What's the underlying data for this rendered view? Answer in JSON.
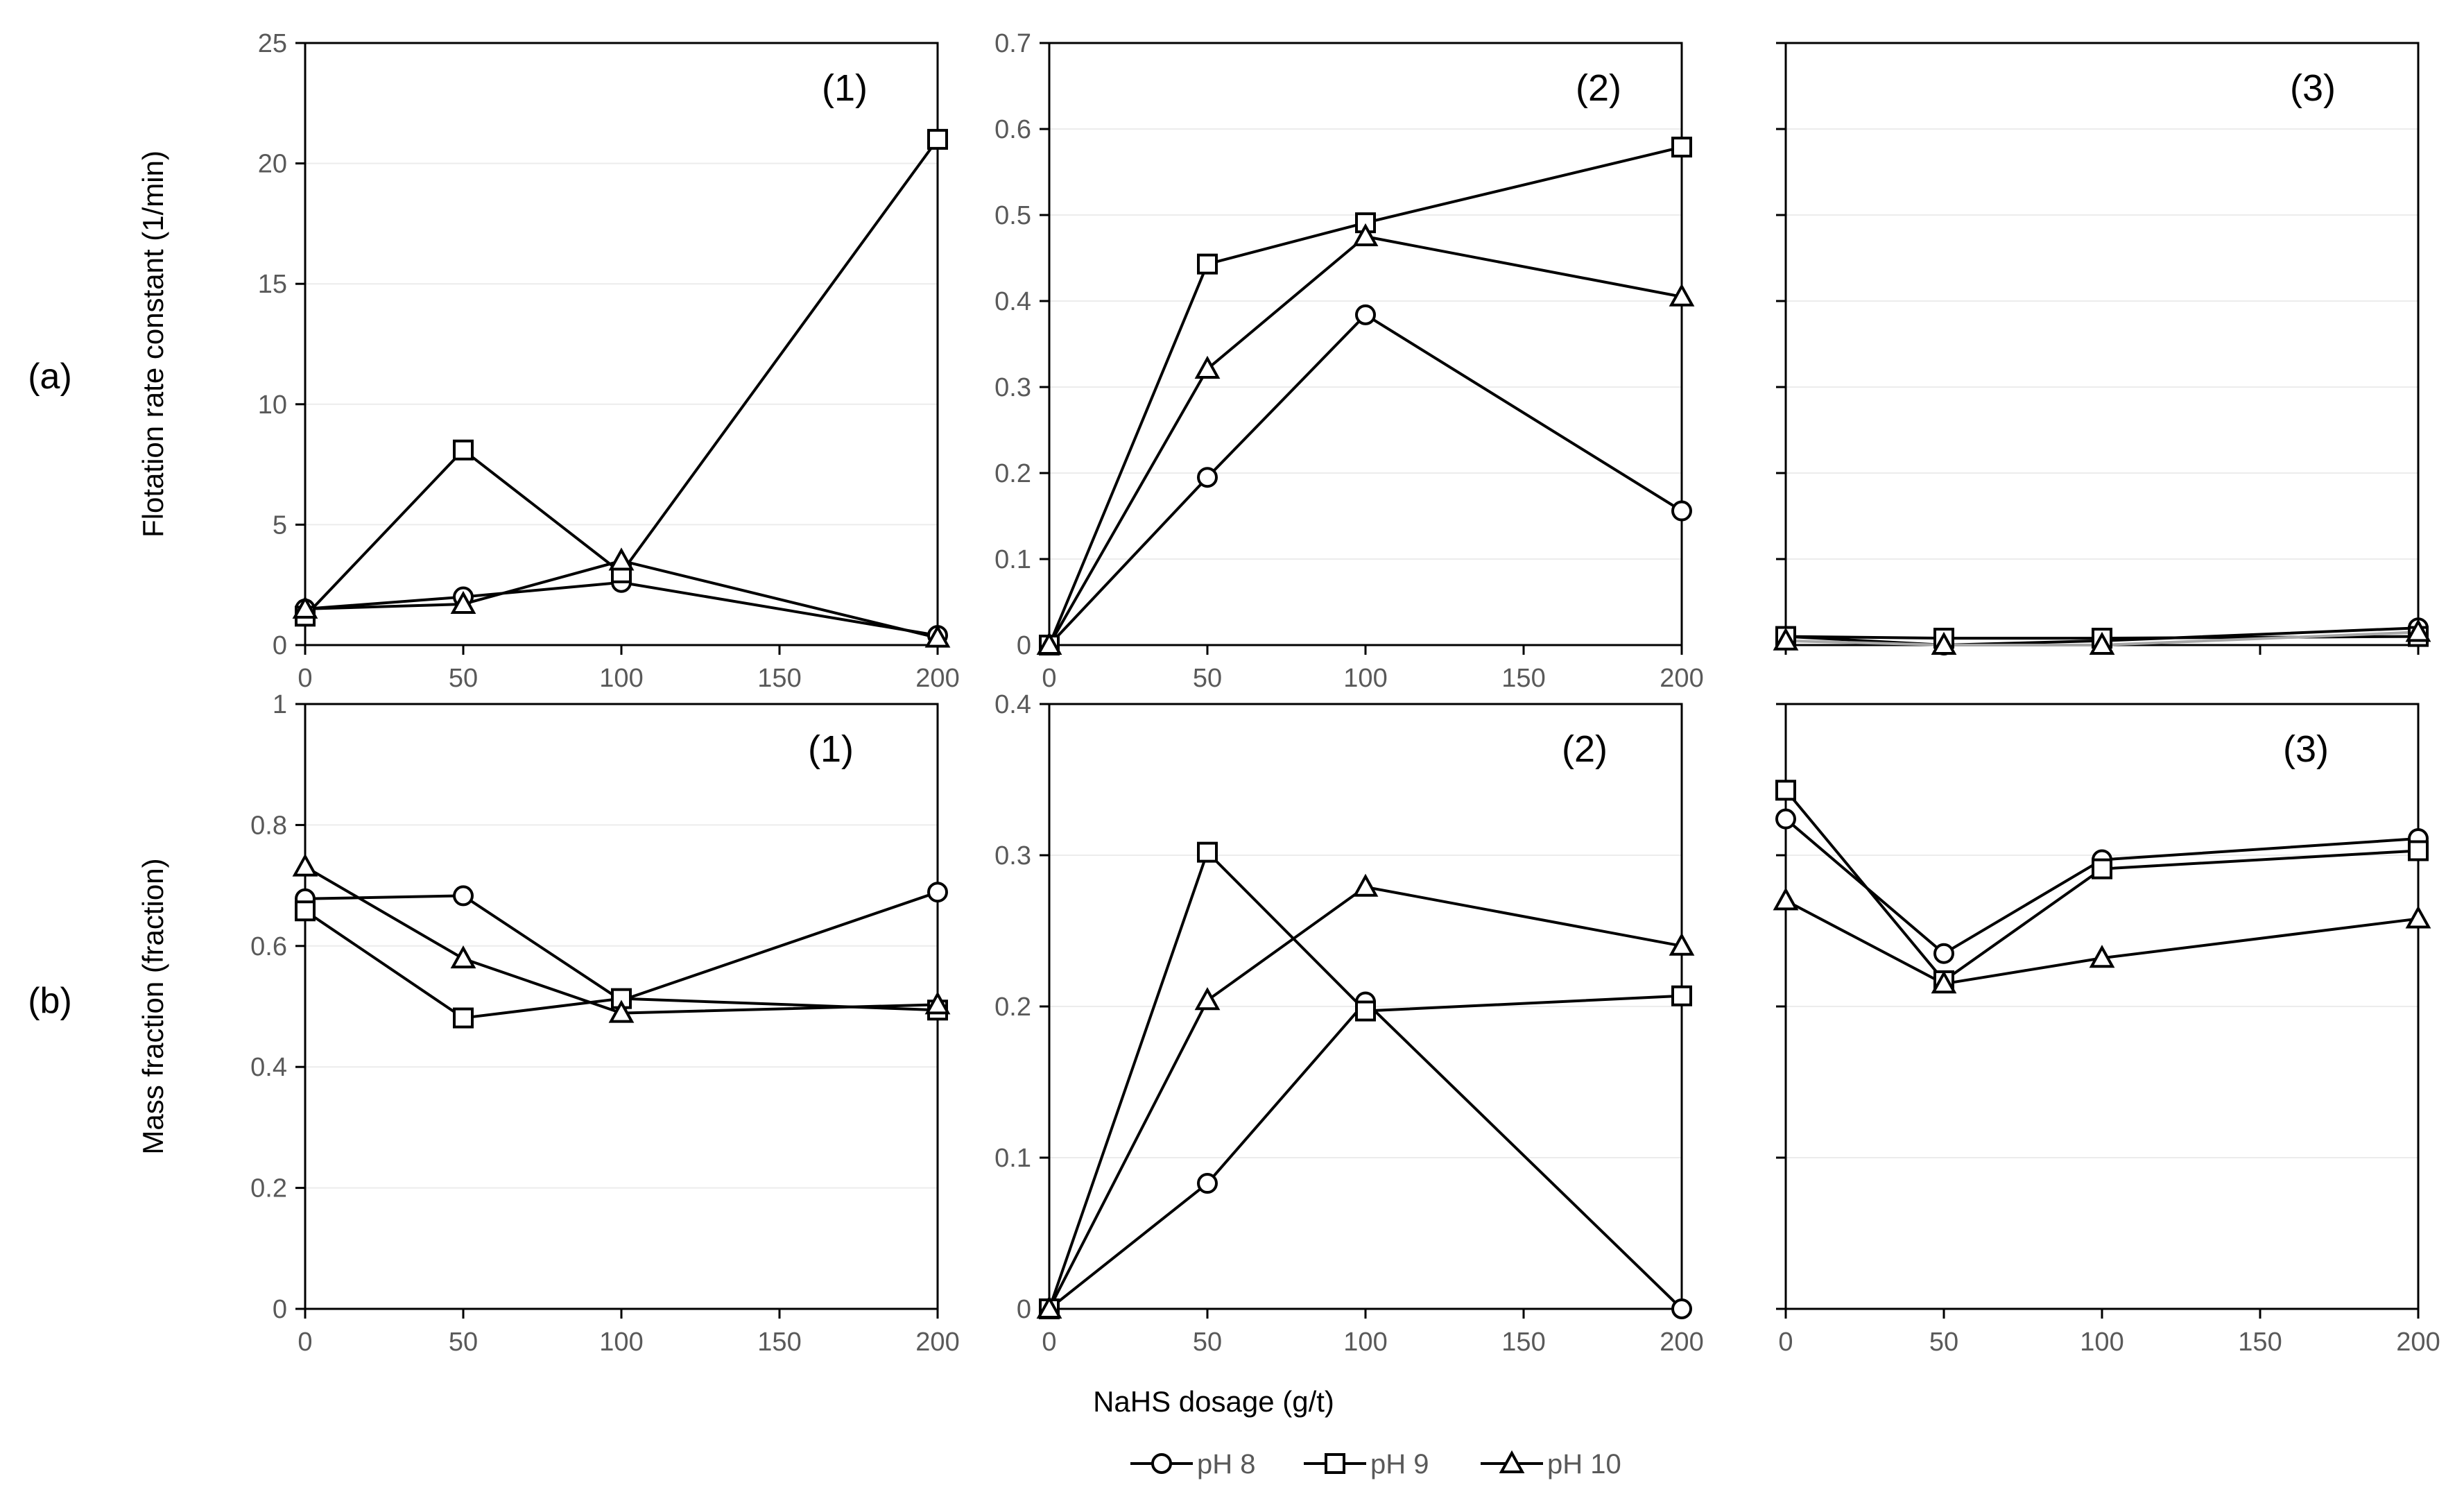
{
  "figure": {
    "row_labels": [
      "(a)",
      "(b)"
    ],
    "xlabel": "NaHS dosage (g/t)",
    "legend": [
      {
        "name": "pH 8",
        "marker": "circle"
      },
      {
        "name": "pH 9",
        "marker": "square"
      },
      {
        "name": "pH 10",
        "marker": "triangle"
      }
    ]
  },
  "chart_data": [
    {
      "type": "line",
      "row": "a",
      "panel_label": "(1)",
      "ylabel": "Flotation rate constant (1/min)",
      "x": [
        0,
        50,
        100,
        200
      ],
      "xlim": [
        0,
        200
      ],
      "xticks": [
        0,
        50,
        100,
        150,
        200
      ],
      "xtick_labels": [
        "0",
        "50",
        "100",
        "150",
        "200"
      ],
      "ylim": [
        0,
        25
      ],
      "yticks": [
        0,
        5,
        10,
        15,
        20,
        25
      ],
      "ytick_labels": [
        "0",
        "5",
        "10",
        "15",
        "20",
        "25"
      ],
      "series": [
        {
          "name": "pH 8",
          "marker": "circle",
          "values": [
            1.5,
            2.0,
            2.6,
            0.4
          ]
        },
        {
          "name": "pH 9",
          "marker": "square",
          "values": [
            1.2,
            8.1,
            3.0,
            21.0
          ]
        },
        {
          "name": "pH 10",
          "marker": "triangle",
          "values": [
            1.5,
            1.7,
            3.5,
            0.3
          ]
        }
      ]
    },
    {
      "type": "line",
      "row": "a",
      "panel_label": "(2)",
      "x": [
        0,
        50,
        100,
        200
      ],
      "xlim": [
        0,
        200
      ],
      "xticks": [
        0,
        50,
        100,
        150,
        200
      ],
      "xtick_labels": [
        "0",
        "50",
        "100",
        "150",
        "200"
      ],
      "ylim": [
        0,
        0.7
      ],
      "yticks": [
        0,
        0.1,
        0.2,
        0.3,
        0.4,
        0.5,
        0.6,
        0.7
      ],
      "ytick_labels": [
        "0",
        "0.1",
        "0.2",
        "0.3",
        "0.4",
        "0.5",
        "0.6",
        "0.7"
      ],
      "series": [
        {
          "name": "pH 8",
          "marker": "circle",
          "values": [
            0,
            0.195,
            0.384,
            0.156
          ]
        },
        {
          "name": "pH 9",
          "marker": "square",
          "values": [
            0,
            0.443,
            0.491,
            0.579
          ]
        },
        {
          "name": "pH 10",
          "marker": "triangle",
          "values": [
            0,
            0.321,
            0.475,
            0.405
          ]
        }
      ]
    },
    {
      "type": "line",
      "row": "a",
      "panel_label": "(3)",
      "x": [
        0,
        50,
        100,
        200
      ],
      "xlim": [
        0,
        200
      ],
      "xticks": [
        0,
        50,
        100,
        150,
        200
      ],
      "xtick_labels": [
        "",
        "",
        "",
        "",
        ""
      ],
      "ylim": [
        0,
        0.7
      ],
      "yticks": [
        0,
        0.1,
        0.2,
        0.3,
        0.4,
        0.5,
        0.6,
        0.7
      ],
      "ytick_labels": [
        "",
        "",
        "",
        "",
        "",
        "",
        "",
        ""
      ],
      "series": [
        {
          "name": "pH 8",
          "marker": "circle",
          "values": [
            0.01,
            0.0,
            0.005,
            0.02
          ]
        },
        {
          "name": "pH 9",
          "marker": "square",
          "values": [
            0.01,
            0.008,
            0.008,
            0.01
          ]
        },
        {
          "name": "pH 10",
          "marker": "triangle",
          "values": [
            0.005,
            0.0,
            0.0,
            0.015
          ]
        }
      ]
    },
    {
      "type": "line",
      "row": "b",
      "panel_label": "(1)",
      "ylabel": "Mass fraction (fraction)",
      "x": [
        0,
        50,
        100,
        200
      ],
      "xlim": [
        0,
        200
      ],
      "xticks": [
        0,
        50,
        100,
        150,
        200
      ],
      "xtick_labels": [
        "0",
        "50",
        "100",
        "150",
        "200"
      ],
      "ylim": [
        0,
        1
      ],
      "yticks": [
        0,
        0.2,
        0.4,
        0.6,
        0.8,
        1
      ],
      "ytick_labels": [
        "0",
        "0.2",
        "0.4",
        "0.6",
        "0.8",
        "1"
      ],
      "series": [
        {
          "name": "pH 8",
          "marker": "circle",
          "values": [
            0.678,
            0.683,
            0.51,
            0.689
          ]
        },
        {
          "name": "pH 9",
          "marker": "square",
          "values": [
            0.658,
            0.481,
            0.513,
            0.494
          ]
        },
        {
          "name": "pH 10",
          "marker": "triangle",
          "values": [
            0.731,
            0.579,
            0.489,
            0.503
          ]
        }
      ]
    },
    {
      "type": "line",
      "row": "b",
      "panel_label": "(2)",
      "x": [
        0,
        50,
        100,
        200
      ],
      "xlim": [
        0,
        200
      ],
      "xticks": [
        0,
        50,
        100,
        150,
        200
      ],
      "xtick_labels": [
        "0",
        "50",
        "100",
        "150",
        "200"
      ],
      "ylim": [
        0,
        0.4
      ],
      "yticks": [
        0,
        0.1,
        0.2,
        0.3,
        0.4
      ],
      "ytick_labels": [
        "0",
        "0.1",
        "0.2",
        "0.3",
        "0.4"
      ],
      "series": [
        {
          "name": "pH 8",
          "marker": "circle",
          "values": [
            0,
            0.083,
            0.203,
            0
          ]
        },
        {
          "name": "pH 9",
          "marker": "square",
          "values": [
            0,
            0.302,
            0.197,
            0.207
          ]
        },
        {
          "name": "pH 10",
          "marker": "triangle",
          "values": [
            0,
            0.204,
            0.279,
            0.24
          ]
        }
      ]
    },
    {
      "type": "line",
      "row": "b",
      "panel_label": "(3)",
      "x": [
        0,
        50,
        100,
        200
      ],
      "xlim": [
        0,
        200
      ],
      "xticks": [
        0,
        50,
        100,
        150,
        200
      ],
      "xtick_labels": [
        "0",
        "50",
        "100",
        "150",
        "200"
      ],
      "ylim": [
        0,
        0.4
      ],
      "yticks": [
        0,
        0.1,
        0.2,
        0.3,
        0.4
      ],
      "ytick_labels": [
        "",
        "",
        "",
        "",
        ""
      ],
      "series": [
        {
          "name": "pH 8",
          "marker": "circle",
          "values": [
            0.324,
            0.235,
            0.297,
            0.311
          ]
        },
        {
          "name": "pH 9",
          "marker": "square",
          "values": [
            0.343,
            0.217,
            0.291,
            0.303
          ]
        },
        {
          "name": "pH 10",
          "marker": "triangle",
          "values": [
            0.27,
            0.215,
            0.232,
            0.258
          ]
        }
      ]
    }
  ]
}
